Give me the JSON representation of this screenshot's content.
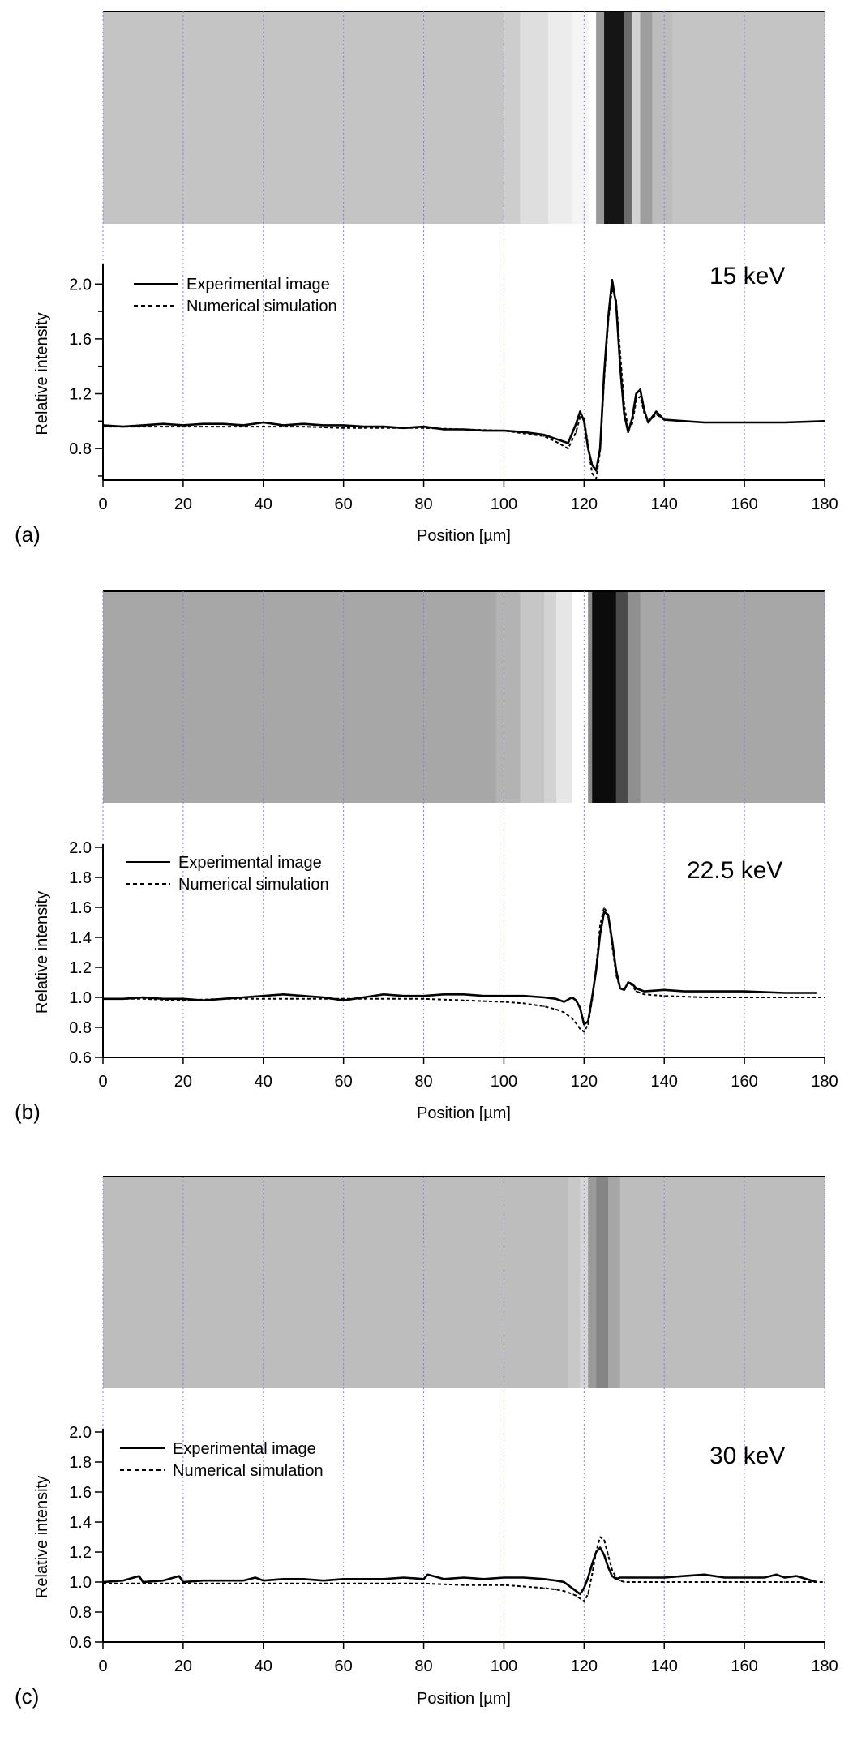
{
  "chart_data": [
    {
      "type": "line",
      "panel_label": "(a)",
      "annotation": "15 keV",
      "xlabel": "Position [µm]",
      "ylabel": "Relative intensity",
      "xlim": [
        0,
        180
      ],
      "ylim": [
        0.57,
        2.12
      ],
      "x_ticks": [
        "0",
        "20",
        "40",
        "60",
        "80",
        "100",
        "120",
        "140",
        "160",
        "180"
      ],
      "y_ticks": [
        "0.8",
        "1.2",
        "1.6",
        "2.0"
      ],
      "y_tick_values": [
        0.8,
        1.2,
        1.6,
        2.0
      ],
      "y_minor_ticks": [
        0.6,
        1.0,
        1.4,
        1.8
      ],
      "legend_position": "top-left",
      "grid": "dotted vertical lines every 20 µm",
      "image_strip": {
        "background": "#c4c4c4",
        "features": [
          {
            "x0": 100,
            "x1": 104,
            "shade": "#cdcdcd"
          },
          {
            "x0": 104,
            "x1": 111,
            "shade": "#dedede"
          },
          {
            "x0": 111,
            "x1": 117,
            "shade": "#ececec"
          },
          {
            "x0": 117,
            "x1": 121,
            "shade": "#f5f5f5"
          },
          {
            "x0": 121,
            "x1": 123,
            "shade": "#ffffff"
          },
          {
            "x0": 123,
            "x1": 125,
            "shade": "#9a9a9a"
          },
          {
            "x0": 125,
            "x1": 130,
            "shade": "#151515"
          },
          {
            "x0": 130,
            "x1": 132,
            "shade": "#6a6a6a"
          },
          {
            "x0": 132,
            "x1": 134,
            "shade": "#d2d2d2"
          },
          {
            "x0": 134,
            "x1": 137,
            "shade": "#9e9e9e"
          },
          {
            "x0": 137,
            "x1": 142,
            "shade": "#bcbcbc"
          }
        ]
      },
      "series": [
        {
          "name": "Experimental image",
          "style": "solid",
          "x": [
            0,
            5,
            10,
            15,
            20,
            25,
            30,
            35,
            40,
            45,
            50,
            55,
            60,
            65,
            70,
            75,
            80,
            85,
            90,
            95,
            100,
            105,
            110,
            113,
            116,
            118,
            119,
            120,
            121,
            122,
            123,
            124,
            125,
            126,
            127,
            128,
            129,
            130,
            131,
            132,
            133,
            134,
            135,
            136,
            137,
            138,
            139,
            140,
            145,
            150,
            160,
            170,
            180
          ],
          "y": [
            0.97,
            0.96,
            0.97,
            0.98,
            0.97,
            0.98,
            0.98,
            0.97,
            0.99,
            0.97,
            0.98,
            0.97,
            0.97,
            0.96,
            0.96,
            0.95,
            0.96,
            0.94,
            0.94,
            0.93,
            0.93,
            0.92,
            0.9,
            0.87,
            0.84,
            0.98,
            1.07,
            1.0,
            0.8,
            0.68,
            0.64,
            0.8,
            1.35,
            1.75,
            2.03,
            1.85,
            1.4,
            1.05,
            0.92,
            1.02,
            1.2,
            1.23,
            1.08,
            0.99,
            1.03,
            1.07,
            1.04,
            1.01,
            1.0,
            0.99,
            0.99,
            0.99,
            1.0
          ]
        },
        {
          "name": "Numerical simulation",
          "style": "dashed",
          "x": [
            0,
            10,
            20,
            30,
            40,
            50,
            60,
            70,
            80,
            90,
            100,
            105,
            110,
            113,
            116,
            118,
            119,
            120,
            121,
            122,
            123,
            124,
            125,
            126,
            127,
            128,
            129,
            130,
            131,
            132,
            133,
            134,
            135,
            136,
            137,
            138,
            139,
            140,
            145,
            150,
            160,
            170,
            180
          ],
          "y": [
            0.96,
            0.96,
            0.96,
            0.96,
            0.96,
            0.96,
            0.95,
            0.95,
            0.95,
            0.94,
            0.93,
            0.91,
            0.89,
            0.85,
            0.8,
            0.92,
            1.03,
            1.02,
            0.82,
            0.62,
            0.58,
            0.78,
            1.3,
            1.72,
            1.97,
            1.88,
            1.5,
            1.12,
            0.94,
            0.98,
            1.15,
            1.18,
            1.06,
            1.0,
            1.02,
            1.05,
            1.03,
            1.01,
            1.0,
            0.99,
            0.99,
            0.99,
            1.0
          ]
        }
      ]
    },
    {
      "type": "line",
      "panel_label": "(b)",
      "annotation": "22.5 keV",
      "xlabel": "Position [µm]",
      "ylabel": "Relative intensity",
      "xlim": [
        0,
        180
      ],
      "ylim": [
        0.6,
        2.0
      ],
      "x_ticks": [
        "0",
        "20",
        "40",
        "60",
        "80",
        "100",
        "120",
        "140",
        "160",
        "180"
      ],
      "y_ticks": [
        "0.6",
        "0.8",
        "1.0",
        "1.2",
        "1.4",
        "1.6",
        "1.8",
        "2.0"
      ],
      "y_tick_values": [
        0.6,
        0.8,
        1.0,
        1.2,
        1.4,
        1.6,
        1.8,
        2.0
      ],
      "y_minor_ticks": [],
      "legend_position": "top-left",
      "grid": "dotted vertical lines every 20 µm",
      "image_strip": {
        "background": "#a7a7a7",
        "features": [
          {
            "x0": 98,
            "x1": 104,
            "shade": "#b3b3b3"
          },
          {
            "x0": 104,
            "x1": 110,
            "shade": "#c6c6c6"
          },
          {
            "x0": 110,
            "x1": 113,
            "shade": "#d3d3d3"
          },
          {
            "x0": 113,
            "x1": 117,
            "shade": "#e6e6e6"
          },
          {
            "x0": 117,
            "x1": 121,
            "shade": "#ffffff"
          },
          {
            "x0": 121,
            "x1": 122,
            "shade": "#8a8a8a"
          },
          {
            "x0": 122,
            "x1": 128,
            "shade": "#0c0c0c"
          },
          {
            "x0": 128,
            "x1": 131,
            "shade": "#4a4a4a"
          },
          {
            "x0": 131,
            "x1": 134,
            "shade": "#8f8f8f"
          }
        ]
      },
      "series": [
        {
          "name": "Experimental image",
          "style": "solid",
          "x": [
            0,
            5,
            10,
            15,
            20,
            25,
            30,
            35,
            40,
            45,
            50,
            55,
            60,
            65,
            70,
            75,
            80,
            85,
            90,
            95,
            100,
            105,
            110,
            113,
            115,
            117,
            118,
            119,
            120,
            121,
            122,
            123,
            124,
            125,
            126,
            127,
            128,
            129,
            130,
            131,
            132,
            133,
            135,
            140,
            145,
            150,
            160,
            170,
            178
          ],
          "y": [
            0.99,
            0.99,
            1.0,
            0.99,
            0.99,
            0.98,
            0.99,
            1.0,
            1.01,
            1.02,
            1.01,
            1.0,
            0.98,
            1.0,
            1.02,
            1.01,
            1.01,
            1.02,
            1.02,
            1.01,
            1.01,
            1.01,
            1.0,
            0.99,
            0.97,
            1.0,
            0.98,
            0.93,
            0.82,
            0.84,
            1.0,
            1.18,
            1.42,
            1.57,
            1.55,
            1.38,
            1.18,
            1.06,
            1.05,
            1.1,
            1.09,
            1.06,
            1.04,
            1.05,
            1.04,
            1.04,
            1.04,
            1.03,
            1.03
          ]
        },
        {
          "name": "Numerical simulation",
          "style": "dashed",
          "x": [
            0,
            10,
            20,
            30,
            40,
            50,
            60,
            70,
            80,
            90,
            100,
            105,
            110,
            113,
            115,
            117,
            118,
            119,
            120,
            121,
            122,
            123,
            124,
            125,
            126,
            127,
            128,
            129,
            130,
            131,
            132,
            133,
            135,
            140,
            150,
            160,
            170,
            180
          ],
          "y": [
            0.99,
            0.99,
            0.98,
            0.99,
            0.99,
            0.99,
            0.99,
            0.99,
            0.99,
            0.98,
            0.97,
            0.96,
            0.94,
            0.92,
            0.9,
            0.86,
            0.83,
            0.79,
            0.77,
            0.82,
            0.98,
            1.2,
            1.48,
            1.6,
            1.55,
            1.35,
            1.15,
            1.06,
            1.05,
            1.1,
            1.08,
            1.04,
            1.02,
            1.01,
            1.0,
            1.0,
            1.0,
            1.0
          ]
        }
      ]
    },
    {
      "type": "line",
      "panel_label": "(c)",
      "annotation": "30 keV",
      "xlabel": "Position [µm]",
      "ylabel": "Relative intensity",
      "xlim": [
        0,
        180
      ],
      "ylim": [
        0.6,
        2.0
      ],
      "x_ticks": [
        "0",
        "20",
        "40",
        "60",
        "80",
        "100",
        "120",
        "140",
        "160",
        "180"
      ],
      "y_ticks": [
        "0.6",
        "0.8",
        "1.0",
        "1.2",
        "1.4",
        "1.6",
        "1.8",
        "2.0"
      ],
      "y_tick_values": [
        0.6,
        0.8,
        1.0,
        1.2,
        1.4,
        1.6,
        1.8,
        2.0
      ],
      "y_minor_ticks": [],
      "legend_position": "top-left",
      "grid": "dotted vertical lines every 20 µm",
      "image_strip": {
        "background": "#bdbdbd",
        "features": [
          {
            "x0": 116,
            "x1": 119,
            "shade": "#c8c8c8"
          },
          {
            "x0": 119,
            "x1": 121,
            "shade": "#d6d6d6"
          },
          {
            "x0": 121,
            "x1": 123,
            "shade": "#9a9a9a"
          },
          {
            "x0": 123,
            "x1": 126,
            "shade": "#858585"
          },
          {
            "x0": 126,
            "x1": 129,
            "shade": "#a6a6a6"
          }
        ]
      },
      "series": [
        {
          "name": "Experimental image",
          "style": "solid",
          "x": [
            0,
            5,
            9,
            10,
            15,
            19,
            20,
            25,
            30,
            35,
            38,
            40,
            45,
            50,
            55,
            60,
            65,
            70,
            75,
            80,
            81,
            85,
            90,
            95,
            100,
            105,
            110,
            113,
            115,
            117,
            119,
            120,
            121,
            122,
            123,
            124,
            125,
            126,
            127,
            128,
            129,
            130,
            135,
            140,
            145,
            150,
            155,
            160,
            165,
            168,
            170,
            173,
            178
          ],
          "y": [
            1.0,
            1.01,
            1.04,
            1.0,
            1.01,
            1.04,
            1.0,
            1.01,
            1.01,
            1.01,
            1.03,
            1.01,
            1.02,
            1.02,
            1.01,
            1.02,
            1.02,
            1.02,
            1.03,
            1.02,
            1.05,
            1.02,
            1.03,
            1.02,
            1.03,
            1.03,
            1.02,
            1.01,
            1.0,
            0.96,
            0.92,
            0.96,
            1.03,
            1.12,
            1.2,
            1.23,
            1.18,
            1.1,
            1.04,
            1.02,
            1.03,
            1.03,
            1.03,
            1.03,
            1.04,
            1.05,
            1.03,
            1.03,
            1.03,
            1.05,
            1.03,
            1.04,
            1.0
          ]
        },
        {
          "name": "Numerical simulation",
          "style": "dashed",
          "x": [
            0,
            10,
            20,
            30,
            40,
            50,
            60,
            70,
            80,
            90,
            100,
            105,
            110,
            113,
            115,
            117,
            118,
            119,
            120,
            121,
            122,
            123,
            124,
            125,
            126,
            127,
            128,
            129,
            130,
            135,
            140,
            150,
            160,
            170,
            180
          ],
          "y": [
            0.99,
            0.99,
            0.99,
            0.99,
            0.99,
            0.99,
            0.99,
            0.99,
            0.99,
            0.98,
            0.98,
            0.97,
            0.96,
            0.95,
            0.94,
            0.92,
            0.91,
            0.89,
            0.87,
            0.92,
            1.05,
            1.2,
            1.3,
            1.28,
            1.18,
            1.08,
            1.03,
            1.01,
            1.0,
            1.0,
            1.0,
            1.0,
            1.0,
            1.0,
            1.0
          ]
        }
      ]
    }
  ]
}
